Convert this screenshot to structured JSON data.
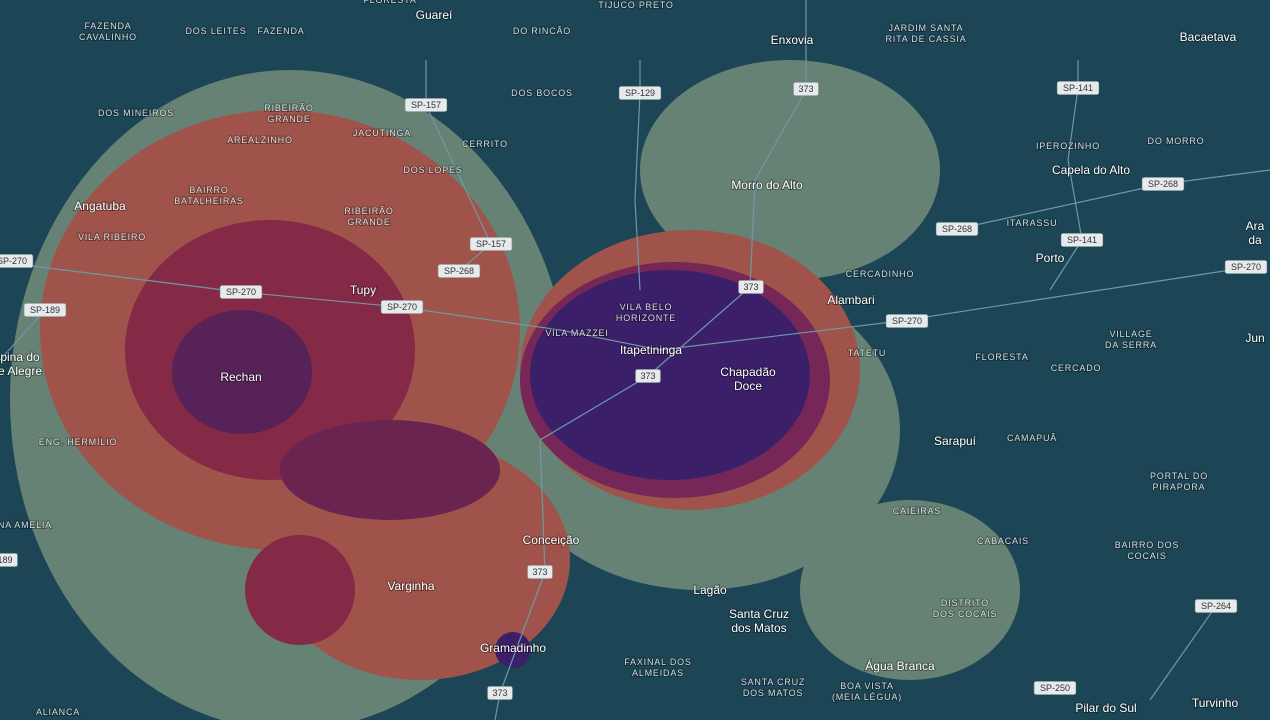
{
  "towns": [
    [
      "Guareí"
    ],
    [
      "Enxovia"
    ],
    [
      "Bacaetava"
    ],
    [
      "Morro do Alto"
    ],
    [
      "Capela do Alto"
    ],
    [
      "Angatuba"
    ],
    [
      "Tupy"
    ],
    [
      "Porto"
    ],
    [
      "Alambari"
    ],
    [
      "Itapetininga"
    ],
    [
      "Chapadão",
      "Doce"
    ],
    [
      "Rechan"
    ],
    [
      "Sarapuí"
    ],
    [
      "Conceição"
    ],
    [
      "Varginha"
    ],
    [
      "Lagão"
    ],
    [
      "Santa Cruz",
      "dos Matos"
    ],
    [
      "Gramadinho"
    ],
    [
      "Água Branca"
    ],
    [
      "Pilar do Sul"
    ],
    [
      "Turvinho"
    ],
    [
      "pina do",
      "e Alegre"
    ],
    [
      "Ara",
      "da"
    ],
    [
      "Jun"
    ]
  ],
  "districts": [
    [
      "FLORESTA"
    ],
    [
      "TIJUCO PRETO"
    ],
    [
      "FAZENDA",
      "CAVALINHO"
    ],
    [
      "DOS LEITES"
    ],
    [
      "FAZENDA"
    ],
    [
      "DO RINCÃO"
    ],
    [
      "JARDIM SANTA",
      "RITA DE CASSIA"
    ],
    [
      "DOS MINEIROS"
    ],
    [
      "RIBEIRÃO",
      "GRANDE"
    ],
    [
      "DOS BOCOS"
    ],
    [
      "JACUTINGA"
    ],
    [
      "AREALZINHO"
    ],
    [
      "CERRITO"
    ],
    [
      "IPEROZINHO"
    ],
    [
      "DO MORRO"
    ],
    [
      "DOS LOPES"
    ],
    [
      "BAIRRO",
      "BATALHEIRAS"
    ],
    [
      "RIBEIRÃO",
      "GRANDE"
    ],
    [
      "ITARASSU"
    ],
    [
      "VILA RIBEIRO"
    ],
    [
      "CERCADINHO"
    ],
    [
      "VILA BELO",
      "HORIZONTE"
    ],
    [
      "VILA MAZZEI"
    ],
    [
      "VILLAGE",
      "DA SERRA"
    ],
    [
      "TATETU"
    ],
    [
      "FLORESTA"
    ],
    [
      "CERCADO"
    ],
    [
      "ENG. HERMÍLIO"
    ],
    [
      "CAMAPUÃ"
    ],
    [
      "PORTAL DO",
      "PIRAPORA"
    ],
    [
      "CAIEIRAS"
    ],
    [
      "NA AMELIA"
    ],
    [
      "CABACAIS"
    ],
    [
      "BAIRRO DOS",
      "COCAIS"
    ],
    [
      "DISTRITO",
      "DOS COCAIS"
    ],
    [
      "FAXINAL DOS",
      "ALMEIDAS"
    ],
    [
      "SANTA CRUZ",
      "DOS MATOS"
    ],
    [
      "BOA VISTA",
      "(MEIA LÉGUA)"
    ],
    [
      "ALIANCA"
    ]
  ],
  "shields": [
    "SP-157",
    "SP-129",
    "373",
    "SP-141",
    "SP-268",
    "SP-157",
    "SP-268",
    "SP-268",
    "SP-141",
    "SP-270",
    "SP-270",
    "SP-270",
    "SP-189",
    "373",
    "SP-270",
    "SP-270",
    "373",
    "189",
    "373",
    "SP-264",
    "SP-250",
    "373"
  ]
}
